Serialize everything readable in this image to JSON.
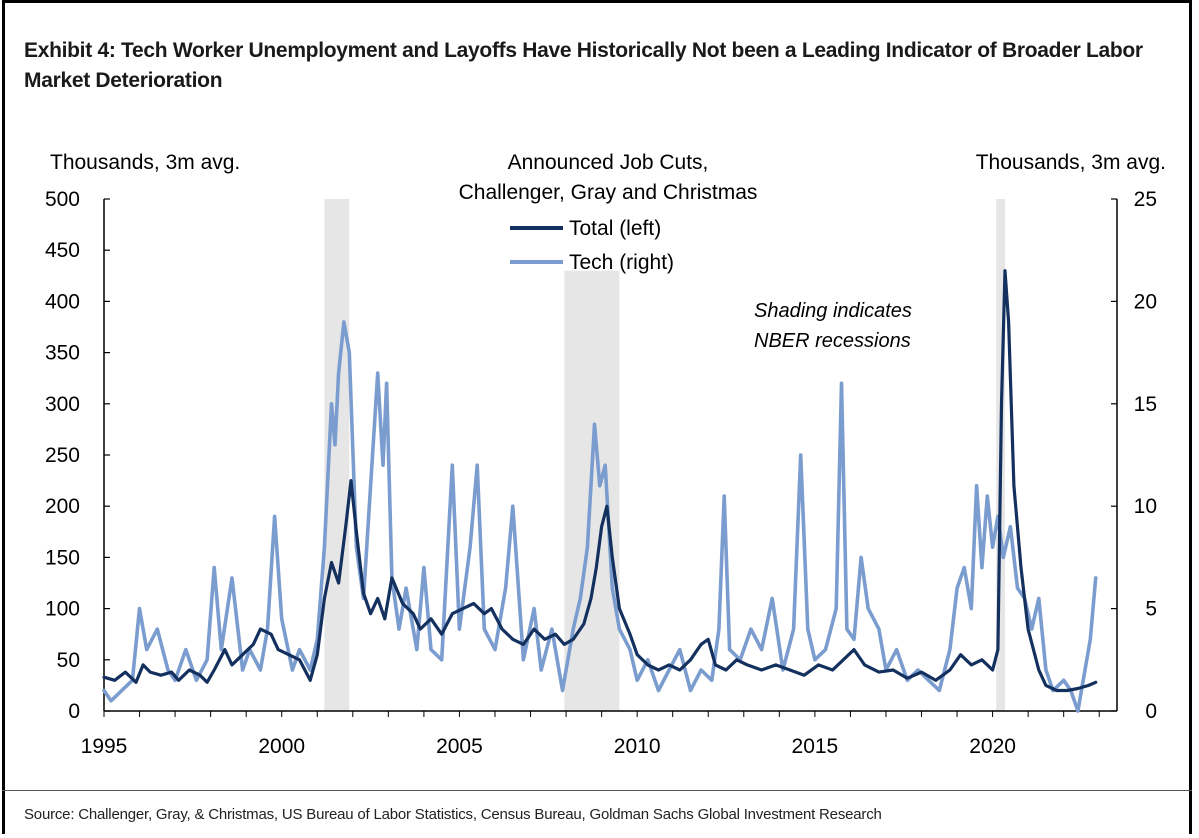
{
  "title": "Exhibit 4: Tech Worker Unemployment and Layoffs Have Historically Not been a Leading Indicator of Broader Labor Market Deterioration",
  "source": "Source: Challenger, Gray, & Christmas, US Bureau of Labor Statistics, Census Bureau, Goldman Sachs Global Investment Research",
  "colors": {
    "total": "#13305e",
    "tech": "#7b9cce",
    "recession": "#e6e6e6"
  },
  "chart_data": {
    "type": "line",
    "title_lines": [
      "Announced Job Cuts,",
      "Challenger, Gray and Christmas"
    ],
    "left_unit": "Thousands, 3m avg.",
    "right_unit": "Thousands, 3m avg.",
    "note_lines": [
      "Shading indicates",
      "NBER recessions"
    ],
    "xlim": [
      1995,
      2023.5
    ],
    "ylim_left": [
      0,
      500
    ],
    "ylim_right": [
      0,
      25
    ],
    "x_ticks": [
      "1995",
      "2000",
      "2005",
      "2010",
      "2015",
      "2020"
    ],
    "left_ticks": [
      "0",
      "50",
      "100",
      "150",
      "200",
      "250",
      "300",
      "350",
      "400",
      "450",
      "500"
    ],
    "right_ticks": [
      "0",
      "5",
      "10",
      "15",
      "20",
      "25"
    ],
    "recessions": [
      [
        2001.2,
        2001.9
      ],
      [
        2007.95,
        2009.5
      ],
      [
        2020.1,
        2020.35
      ]
    ],
    "series": [
      {
        "name": "Total (left)",
        "axis": "left",
        "points": [
          [
            1995.0,
            33
          ],
          [
            1995.3,
            30
          ],
          [
            1995.6,
            38
          ],
          [
            1995.9,
            28
          ],
          [
            1996.1,
            45
          ],
          [
            1996.3,
            38
          ],
          [
            1996.6,
            35
          ],
          [
            1996.9,
            38
          ],
          [
            1997.1,
            30
          ],
          [
            1997.4,
            40
          ],
          [
            1997.7,
            35
          ],
          [
            1997.9,
            28
          ],
          [
            1998.1,
            40
          ],
          [
            1998.4,
            60
          ],
          [
            1998.6,
            45
          ],
          [
            1998.9,
            55
          ],
          [
            1999.2,
            65
          ],
          [
            1999.4,
            80
          ],
          [
            1999.7,
            75
          ],
          [
            1999.9,
            60
          ],
          [
            2000.2,
            55
          ],
          [
            2000.5,
            50
          ],
          [
            2000.8,
            30
          ],
          [
            2001.0,
            55
          ],
          [
            2001.2,
            110
          ],
          [
            2001.4,
            145
          ],
          [
            2001.6,
            125
          ],
          [
            2001.8,
            180
          ],
          [
            2001.95,
            225
          ],
          [
            2002.1,
            175
          ],
          [
            2002.3,
            115
          ],
          [
            2002.5,
            95
          ],
          [
            2002.7,
            110
          ],
          [
            2002.9,
            90
          ],
          [
            2003.1,
            130
          ],
          [
            2003.4,
            105
          ],
          [
            2003.7,
            95
          ],
          [
            2003.9,
            80
          ],
          [
            2004.2,
            90
          ],
          [
            2004.5,
            75
          ],
          [
            2004.8,
            95
          ],
          [
            2005.1,
            100
          ],
          [
            2005.4,
            105
          ],
          [
            2005.7,
            95
          ],
          [
            2005.9,
            100
          ],
          [
            2006.2,
            80
          ],
          [
            2006.5,
            70
          ],
          [
            2006.8,
            65
          ],
          [
            2007.1,
            80
          ],
          [
            2007.4,
            70
          ],
          [
            2007.7,
            75
          ],
          [
            2007.95,
            65
          ],
          [
            2008.2,
            70
          ],
          [
            2008.5,
            85
          ],
          [
            2008.7,
            110
          ],
          [
            2008.85,
            140
          ],
          [
            2009.0,
            180
          ],
          [
            2009.15,
            200
          ],
          [
            2009.3,
            150
          ],
          [
            2009.5,
            100
          ],
          [
            2009.8,
            75
          ],
          [
            2010.0,
            55
          ],
          [
            2010.3,
            45
          ],
          [
            2010.6,
            40
          ],
          [
            2010.9,
            45
          ],
          [
            2011.2,
            40
          ],
          [
            2011.5,
            50
          ],
          [
            2011.8,
            65
          ],
          [
            2012.0,
            70
          ],
          [
            2012.2,
            45
          ],
          [
            2012.5,
            40
          ],
          [
            2012.8,
            50
          ],
          [
            2013.1,
            45
          ],
          [
            2013.5,
            40
          ],
          [
            2013.9,
            45
          ],
          [
            2014.3,
            40
          ],
          [
            2014.7,
            35
          ],
          [
            2015.1,
            45
          ],
          [
            2015.5,
            40
          ],
          [
            2015.8,
            50
          ],
          [
            2016.1,
            60
          ],
          [
            2016.4,
            45
          ],
          [
            2016.8,
            38
          ],
          [
            2017.2,
            40
          ],
          [
            2017.6,
            32
          ],
          [
            2018.0,
            38
          ],
          [
            2018.4,
            30
          ],
          [
            2018.8,
            40
          ],
          [
            2019.1,
            55
          ],
          [
            2019.4,
            45
          ],
          [
            2019.7,
            50
          ],
          [
            2020.0,
            40
          ],
          [
            2020.15,
            60
          ],
          [
            2020.25,
            300
          ],
          [
            2020.35,
            430
          ],
          [
            2020.45,
            380
          ],
          [
            2020.6,
            220
          ],
          [
            2020.8,
            140
          ],
          [
            2021.0,
            80
          ],
          [
            2021.3,
            40
          ],
          [
            2021.5,
            25
          ],
          [
            2021.8,
            20
          ],
          [
            2022.1,
            20
          ],
          [
            2022.4,
            22
          ],
          [
            2022.7,
            25
          ],
          [
            2022.9,
            28
          ]
        ]
      },
      {
        "name": "Tech (right)",
        "axis": "right",
        "points": [
          [
            1995.0,
            1.0
          ],
          [
            1995.2,
            0.5
          ],
          [
            1995.5,
            1.0
          ],
          [
            1995.8,
            1.5
          ],
          [
            1996.0,
            5.0
          ],
          [
            1996.2,
            3.0
          ],
          [
            1996.5,
            4.0
          ],
          [
            1996.8,
            2.0
          ],
          [
            1997.0,
            1.5
          ],
          [
            1997.3,
            3.0
          ],
          [
            1997.6,
            1.5
          ],
          [
            1997.9,
            2.5
          ],
          [
            1998.1,
            7.0
          ],
          [
            1998.3,
            3.0
          ],
          [
            1998.6,
            6.5
          ],
          [
            1998.9,
            2.0
          ],
          [
            1999.1,
            3.0
          ],
          [
            1999.4,
            2.0
          ],
          [
            1999.6,
            4.0
          ],
          [
            1999.8,
            9.5
          ],
          [
            2000.0,
            4.5
          ],
          [
            2000.3,
            2.0
          ],
          [
            2000.5,
            3.0
          ],
          [
            2000.8,
            2.0
          ],
          [
            2001.0,
            3.5
          ],
          [
            2001.2,
            8.0
          ],
          [
            2001.4,
            15.0
          ],
          [
            2001.5,
            13.0
          ],
          [
            2001.6,
            16.5
          ],
          [
            2001.75,
            19.0
          ],
          [
            2001.9,
            17.5
          ],
          [
            2002.1,
            8.0
          ],
          [
            2002.3,
            5.5
          ],
          [
            2002.5,
            11.0
          ],
          [
            2002.7,
            16.5
          ],
          [
            2002.85,
            12.0
          ],
          [
            2002.95,
            16.0
          ],
          [
            2003.1,
            6.5
          ],
          [
            2003.3,
            4.0
          ],
          [
            2003.5,
            6.0
          ],
          [
            2003.8,
            3.0
          ],
          [
            2004.0,
            7.0
          ],
          [
            2004.2,
            3.0
          ],
          [
            2004.5,
            2.5
          ],
          [
            2004.8,
            12.0
          ],
          [
            2005.0,
            4.0
          ],
          [
            2005.3,
            8.0
          ],
          [
            2005.5,
            12.0
          ],
          [
            2005.7,
            4.0
          ],
          [
            2006.0,
            3.0
          ],
          [
            2006.3,
            6.0
          ],
          [
            2006.5,
            10.0
          ],
          [
            2006.8,
            2.5
          ],
          [
            2007.1,
            5.0
          ],
          [
            2007.3,
            2.0
          ],
          [
            2007.6,
            4.0
          ],
          [
            2007.9,
            1.0
          ],
          [
            2008.2,
            4.0
          ],
          [
            2008.4,
            5.5
          ],
          [
            2008.6,
            8.0
          ],
          [
            2008.8,
            14.0
          ],
          [
            2008.95,
            11.0
          ],
          [
            2009.1,
            12.0
          ],
          [
            2009.3,
            6.0
          ],
          [
            2009.5,
            4.0
          ],
          [
            2009.8,
            3.0
          ],
          [
            2010.0,
            1.5
          ],
          [
            2010.3,
            2.5
          ],
          [
            2010.6,
            1.0
          ],
          [
            2010.9,
            2.0
          ],
          [
            2011.2,
            3.0
          ],
          [
            2011.5,
            1.0
          ],
          [
            2011.8,
            2.0
          ],
          [
            2012.1,
            1.5
          ],
          [
            2012.3,
            4.0
          ],
          [
            2012.45,
            10.5
          ],
          [
            2012.6,
            3.0
          ],
          [
            2012.9,
            2.5
          ],
          [
            2013.2,
            4.0
          ],
          [
            2013.5,
            3.0
          ],
          [
            2013.8,
            5.5
          ],
          [
            2014.1,
            2.0
          ],
          [
            2014.4,
            4.0
          ],
          [
            2014.6,
            12.5
          ],
          [
            2014.8,
            4.0
          ],
          [
            2015.0,
            2.5
          ],
          [
            2015.3,
            3.0
          ],
          [
            2015.6,
            5.0
          ],
          [
            2015.75,
            16.0
          ],
          [
            2015.9,
            4.0
          ],
          [
            2016.1,
            3.5
          ],
          [
            2016.3,
            7.5
          ],
          [
            2016.5,
            5.0
          ],
          [
            2016.8,
            4.0
          ],
          [
            2017.0,
            2.0
          ],
          [
            2017.3,
            3.0
          ],
          [
            2017.6,
            1.5
          ],
          [
            2017.9,
            2.0
          ],
          [
            2018.2,
            1.5
          ],
          [
            2018.5,
            1.0
          ],
          [
            2018.8,
            3.0
          ],
          [
            2019.0,
            6.0
          ],
          [
            2019.2,
            7.0
          ],
          [
            2019.4,
            5.0
          ],
          [
            2019.55,
            11.0
          ],
          [
            2019.7,
            7.0
          ],
          [
            2019.85,
            10.5
          ],
          [
            2020.0,
            8.0
          ],
          [
            2020.15,
            9.5
          ],
          [
            2020.3,
            7.5
          ],
          [
            2020.5,
            9.0
          ],
          [
            2020.7,
            6.0
          ],
          [
            2020.9,
            5.5
          ],
          [
            2021.1,
            4.0
          ],
          [
            2021.3,
            5.5
          ],
          [
            2021.5,
            2.0
          ],
          [
            2021.7,
            1.0
          ],
          [
            2022.0,
            1.5
          ],
          [
            2022.2,
            1.0
          ],
          [
            2022.4,
            0.0
          ],
          [
            2022.6,
            2.0
          ],
          [
            2022.75,
            3.5
          ],
          [
            2022.9,
            6.5
          ]
        ]
      }
    ]
  }
}
